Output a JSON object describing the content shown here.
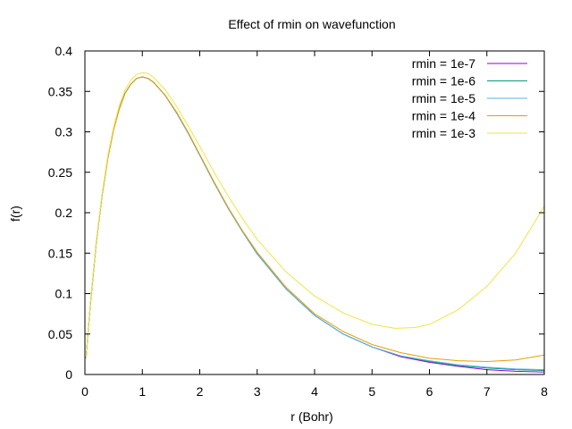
{
  "chart_data": {
    "type": "line",
    "title": "Effect of rmin on wavefunction",
    "xlabel": "r (Bohr)",
    "ylabel": "f(r)",
    "xlim": [
      0,
      8
    ],
    "ylim": [
      0,
      0.4
    ],
    "xticks": [
      0,
      1,
      2,
      3,
      4,
      5,
      6,
      7,
      8
    ],
    "yticks": [
      0,
      0.05,
      0.1,
      0.15,
      0.2,
      0.25,
      0.3,
      0.35,
      0.4
    ],
    "xtick_labels": [
      "0",
      "1",
      "2",
      "3",
      "4",
      "5",
      "6",
      "7",
      "8"
    ],
    "ytick_labels": [
      "0",
      "0.05",
      "0.1",
      "0.15",
      "0.2",
      "0.25",
      "0.3",
      "0.35",
      "0.4"
    ],
    "grid": false,
    "legend_position": "top-right",
    "series": [
      {
        "name": "rmin = 1e-7",
        "color": "#9400d3",
        "x": [
          0.02,
          0.05,
          0.1,
          0.2,
          0.3,
          0.4,
          0.5,
          0.6,
          0.7,
          0.8,
          0.9,
          1.0,
          1.1,
          1.2,
          1.4,
          1.6,
          1.8,
          2.0,
          2.25,
          2.5,
          2.75,
          3.0,
          3.5,
          4.0,
          4.5,
          5.0,
          5.5,
          6.0,
          6.5,
          7.0,
          7.5,
          8.0
        ],
        "y": [
          0.02,
          0.048,
          0.09,
          0.164,
          0.222,
          0.268,
          0.303,
          0.329,
          0.348,
          0.359,
          0.366,
          0.368,
          0.366,
          0.361,
          0.345,
          0.323,
          0.298,
          0.271,
          0.237,
          0.205,
          0.176,
          0.149,
          0.106,
          0.073,
          0.05,
          0.034,
          0.022,
          0.015,
          0.01,
          0.006,
          0.004,
          0.003
        ]
      },
      {
        "name": "rmin = 1e-6",
        "color": "#009e73",
        "x": [
          0.02,
          0.05,
          0.1,
          0.2,
          0.3,
          0.4,
          0.5,
          0.6,
          0.7,
          0.8,
          0.9,
          1.0,
          1.1,
          1.2,
          1.4,
          1.6,
          1.8,
          2.0,
          2.25,
          2.5,
          2.75,
          3.0,
          3.5,
          4.0,
          4.5,
          5.0,
          5.5,
          6.0,
          6.5,
          7.0,
          7.5,
          8.0
        ],
        "y": [
          0.02,
          0.048,
          0.09,
          0.164,
          0.222,
          0.268,
          0.303,
          0.329,
          0.348,
          0.359,
          0.366,
          0.368,
          0.366,
          0.361,
          0.345,
          0.323,
          0.298,
          0.271,
          0.237,
          0.205,
          0.176,
          0.149,
          0.106,
          0.073,
          0.05,
          0.034,
          0.023,
          0.016,
          0.011,
          0.008,
          0.006,
          0.005
        ]
      },
      {
        "name": "rmin = 1e-5",
        "color": "#56b4e9",
        "x": [
          0.02,
          0.05,
          0.1,
          0.2,
          0.3,
          0.4,
          0.5,
          0.6,
          0.7,
          0.8,
          0.9,
          1.0,
          1.1,
          1.2,
          1.4,
          1.6,
          1.8,
          2.0,
          2.25,
          2.5,
          2.75,
          3.0,
          3.5,
          4.0,
          4.5,
          5.0,
          5.5,
          6.0,
          6.5,
          7.0,
          7.5,
          8.0
        ],
        "y": [
          0.02,
          0.048,
          0.09,
          0.164,
          0.222,
          0.268,
          0.303,
          0.329,
          0.348,
          0.359,
          0.366,
          0.368,
          0.366,
          0.361,
          0.345,
          0.323,
          0.298,
          0.271,
          0.237,
          0.205,
          0.176,
          0.149,
          0.106,
          0.073,
          0.05,
          0.034,
          0.023,
          0.017,
          0.012,
          0.009,
          0.007,
          0.006
        ]
      },
      {
        "name": "rmin = 1e-4",
        "color": "#e69f00",
        "x": [
          0.02,
          0.05,
          0.1,
          0.2,
          0.3,
          0.4,
          0.5,
          0.6,
          0.7,
          0.8,
          0.9,
          1.0,
          1.1,
          1.2,
          1.4,
          1.6,
          1.8,
          2.0,
          2.25,
          2.5,
          2.75,
          3.0,
          3.5,
          4.0,
          4.5,
          5.0,
          5.5,
          6.0,
          6.5,
          7.0,
          7.5,
          8.0
        ],
        "y": [
          0.02,
          0.048,
          0.09,
          0.164,
          0.222,
          0.268,
          0.303,
          0.329,
          0.348,
          0.359,
          0.366,
          0.368,
          0.366,
          0.361,
          0.345,
          0.324,
          0.299,
          0.272,
          0.238,
          0.206,
          0.177,
          0.151,
          0.108,
          0.075,
          0.053,
          0.037,
          0.027,
          0.02,
          0.017,
          0.016,
          0.018,
          0.024
        ]
      },
      {
        "name": "rmin = 1e-3",
        "color": "#f0e442",
        "x": [
          0.02,
          0.05,
          0.1,
          0.2,
          0.3,
          0.4,
          0.5,
          0.6,
          0.7,
          0.8,
          0.9,
          1.0,
          1.1,
          1.2,
          1.4,
          1.6,
          1.8,
          2.0,
          2.25,
          2.5,
          2.75,
          3.0,
          3.5,
          4.0,
          4.5,
          5.0,
          5.4,
          5.75,
          6.0,
          6.5,
          7.0,
          7.5,
          8.0
        ],
        "y": [
          0.02,
          0.049,
          0.091,
          0.166,
          0.224,
          0.271,
          0.306,
          0.333,
          0.352,
          0.364,
          0.371,
          0.373,
          0.372,
          0.367,
          0.352,
          0.331,
          0.307,
          0.282,
          0.25,
          0.22,
          0.192,
          0.167,
          0.127,
          0.097,
          0.076,
          0.062,
          0.057,
          0.058,
          0.062,
          0.08,
          0.109,
          0.15,
          0.208
        ]
      }
    ]
  }
}
